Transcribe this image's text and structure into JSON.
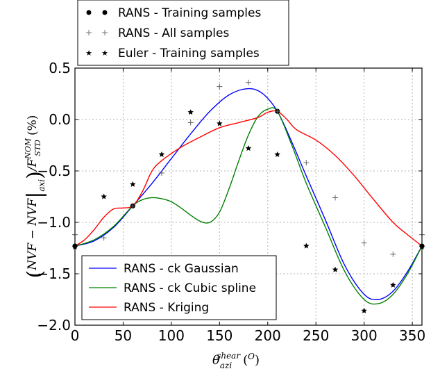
{
  "chart_data": {
    "type": "line",
    "xlabel": "θ_azi^shear (^0)",
    "ylabel": "(NVF − NVF|_axi)/F_STD^NOM (%)",
    "xlim": [
      0,
      360
    ],
    "ylim": [
      -2.0,
      0.5
    ],
    "grid": true,
    "x_ticks": [
      0,
      50,
      100,
      150,
      200,
      250,
      300,
      350
    ],
    "x_tick_labels": [
      "0",
      "50",
      "100",
      "150",
      "200",
      "250",
      "300",
      "350"
    ],
    "y_ticks": [
      0.5,
      0.0,
      -0.5,
      -1.0,
      -1.5,
      -2.0
    ],
    "y_tick_labels": [
      "0.5",
      "0.0",
      "−0.5",
      "−1.0",
      "−1.5",
      "−2.0"
    ],
    "top_legend": [
      {
        "label": "RANS - Training samples",
        "marker": "dot"
      },
      {
        "label": "RANS - All samples",
        "marker": "plus"
      },
      {
        "label": "Euler - Training samples",
        "marker": "star"
      }
    ],
    "bottom_legend": [
      {
        "label": "RANS - ck Gaussian",
        "color": "#0000ff"
      },
      {
        "label": "RANS - ck Cubic spline",
        "color": "#008000"
      },
      {
        "label": "RANS - Kriging",
        "color": "#ff0000"
      }
    ],
    "scatter": [
      {
        "name": "RANS - Training samples",
        "marker": "dot",
        "x": [
          0,
          60,
          210,
          360
        ],
        "y": [
          -1.23,
          -0.84,
          0.08,
          -1.23
        ]
      },
      {
        "name": "RANS - All samples",
        "marker": "plus",
        "x": [
          0,
          30,
          60,
          90,
          120,
          150,
          180,
          210,
          240,
          270,
          300,
          330,
          360
        ],
        "y": [
          -1.12,
          -1.15,
          -0.84,
          -0.52,
          -0.03,
          0.32,
          0.36,
          0.08,
          -0.42,
          -0.76,
          -1.2,
          -1.31,
          -1.12
        ]
      },
      {
        "name": "Euler - Training samples",
        "marker": "star",
        "x": [
          0,
          30,
          60,
          90,
          120,
          150,
          180,
          210,
          240,
          270,
          300,
          330,
          360
        ],
        "y": [
          -1.24,
          -0.75,
          -0.63,
          -0.34,
          0.07,
          -0.04,
          -0.28,
          -0.34,
          -1.23,
          -1.46,
          -1.86,
          -1.61,
          -1.24
        ]
      }
    ],
    "series": [
      {
        "name": "RANS - ck Gaussian",
        "color": "#0000ff",
        "x": [
          0,
          20,
          40,
          60,
          80,
          100,
          120,
          140,
          160,
          180,
          195,
          210,
          225,
          240,
          260,
          280,
          300,
          315,
          330,
          345,
          360
        ],
        "y": [
          -1.23,
          -1.18,
          -1.05,
          -0.84,
          -0.62,
          -0.38,
          -0.14,
          0.08,
          0.24,
          0.3,
          0.25,
          0.08,
          -0.22,
          -0.55,
          -0.98,
          -1.42,
          -1.7,
          -1.75,
          -1.67,
          -1.48,
          -1.23
        ]
      },
      {
        "name": "RANS - ck Cubic spline",
        "color": "#008000",
        "x": [
          0,
          20,
          40,
          60,
          70,
          80,
          90,
          100,
          110,
          120,
          130,
          140,
          150,
          160,
          170,
          180,
          190,
          200,
          210,
          225,
          240,
          260,
          280,
          300,
          315,
          330,
          345,
          360
        ],
        "y": [
          -1.23,
          -1.17,
          -1.04,
          -0.84,
          -0.78,
          -0.76,
          -0.77,
          -0.8,
          -0.86,
          -0.93,
          -0.99,
          -1.0,
          -0.9,
          -0.67,
          -0.4,
          -0.15,
          0.03,
          0.1,
          0.08,
          -0.25,
          -0.62,
          -1.05,
          -1.48,
          -1.75,
          -1.79,
          -1.7,
          -1.5,
          -1.23
        ]
      },
      {
        "name": "RANS - Kriging",
        "color": "#ff0000",
        "x": [
          0,
          10,
          20,
          30,
          40,
          50,
          60,
          70,
          80,
          90,
          110,
          130,
          150,
          170,
          190,
          200,
          210,
          220,
          230,
          250,
          270,
          290,
          310,
          330,
          345,
          360
        ],
        "y": [
          -1.23,
          -1.17,
          -1.07,
          -0.95,
          -0.87,
          -0.86,
          -0.84,
          -0.7,
          -0.5,
          -0.4,
          -0.27,
          -0.17,
          -0.08,
          -0.03,
          0.02,
          0.07,
          0.08,
          0.0,
          -0.1,
          -0.2,
          -0.35,
          -0.55,
          -0.78,
          -1.0,
          -1.12,
          -1.23
        ]
      }
    ]
  }
}
